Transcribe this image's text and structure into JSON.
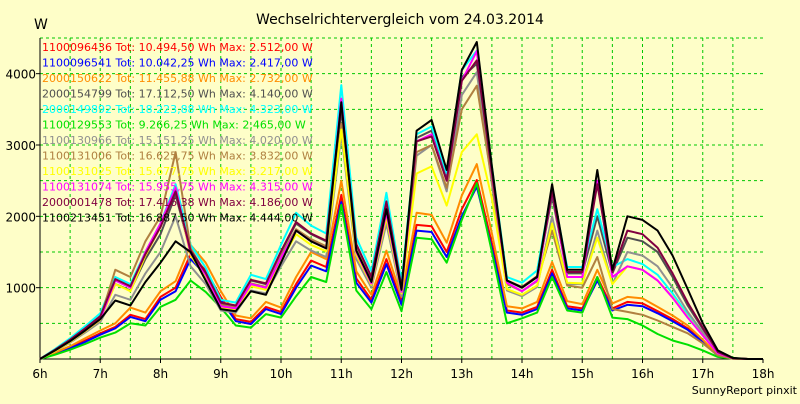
{
  "footer": {
    "credit": "SunnyReport pinxit"
  },
  "chart_data": {
    "type": "line",
    "title": "Wechselrichtervergleich vom 24.03.2014",
    "ylabel": "W",
    "xlabel": "",
    "ylim": [
      0,
      4500
    ],
    "xlim": [
      6,
      18
    ],
    "yticks": [
      1000,
      2000,
      3000,
      4000
    ],
    "xticks": [
      6,
      7,
      8,
      9,
      10,
      11,
      12,
      13,
      14,
      15,
      16,
      17,
      18
    ],
    "xtick_labels": [
      "6h",
      "7h",
      "8h",
      "9h",
      "10h",
      "11h",
      "12h",
      "13h",
      "14h",
      "15h",
      "16h",
      "17h",
      "18h"
    ],
    "grid": true,
    "legend_position": "top-left",
    "x": [
      6,
      6.25,
      6.5,
      6.75,
      7,
      7.25,
      7.5,
      7.75,
      8,
      8.25,
      8.5,
      8.75,
      9,
      9.25,
      9.5,
      9.75,
      10,
      10.25,
      10.5,
      10.75,
      11,
      11.25,
      11.5,
      11.75,
      12,
      12.25,
      12.5,
      12.75,
      13,
      13.25,
      13.5,
      13.75,
      14,
      14.25,
      14.5,
      14.75,
      15,
      15.25,
      15.5,
      15.75,
      16,
      16.25,
      16.5,
      16.75,
      17,
      17.25,
      17.5,
      17.75,
      18
    ],
    "series": [
      {
        "name": "1100096436 Tot: 10.494,50 Wh Max: 2.512,00 W",
        "color": "#ff0000",
        "values": [
          0,
          80,
          160,
          260,
          360,
          450,
          620,
          560,
          870,
          1000,
          1470,
          1240,
          870,
          560,
          520,
          730,
          660,
          1050,
          1380,
          1290,
          2300,
          1130,
          830,
          1400,
          800,
          1880,
          1860,
          1500,
          2100,
          2510,
          1620,
          680,
          650,
          730,
          1250,
          740,
          710,
          1150,
          710,
          800,
          780,
          670,
          560,
          430,
          250,
          50,
          5,
          0,
          0
        ]
      },
      {
        "name": "1100096541 Tot: 10.042,25 Wh Max: 2.417,00 W",
        "color": "#0000ff",
        "values": [
          0,
          70,
          150,
          240,
          340,
          430,
          590,
          530,
          830,
          950,
          1400,
          1180,
          830,
          530,
          490,
          700,
          630,
          1000,
          1310,
          1230,
          2200,
          1070,
          790,
          1330,
          760,
          1800,
          1780,
          1430,
          2000,
          2417,
          1550,
          650,
          620,
          700,
          1200,
          710,
          680,
          1100,
          680,
          760,
          740,
          640,
          530,
          410,
          240,
          45,
          5,
          0,
          0
        ]
      },
      {
        "name": "2000150622 Tot: 11.455,88 Wh Max: 2.732,00 W",
        "color": "#ff8c00",
        "values": [
          0,
          90,
          180,
          290,
          400,
          500,
          720,
          650,
          950,
          1090,
          1600,
          1350,
          950,
          610,
          570,
          800,
          720,
          1150,
          1500,
          1400,
          2500,
          1230,
          900,
          1520,
          870,
          2050,
          2020,
          1630,
          2290,
          2732,
          1760,
          740,
          710,
          800,
          1360,
          810,
          770,
          1250,
          780,
          870,
          850,
          730,
          610,
          470,
          270,
          55,
          5,
          0,
          0
        ]
      },
      {
        "name": "2000154799 Tot: 17.112,50 Wh Max: 4.140,00 W",
        "color": "#505050",
        "values": [
          0,
          130,
          270,
          430,
          600,
          1050,
          960,
          1400,
          1750,
          2300,
          1500,
          1200,
          780,
          740,
          1100,
          1050,
          1500,
          1900,
          1750,
          1650,
          3480,
          1600,
          1150,
          2200,
          1000,
          3100,
          3200,
          2550,
          3950,
          4140,
          2600,
          1100,
          1000,
          1150,
          2280,
          1200,
          1200,
          2000,
          1200,
          1700,
          1650,
          1500,
          1150,
          750,
          420,
          100,
          10,
          0,
          0
        ]
      },
      {
        "name": "2000149892 Tot: 18.223,88 Wh Max: 4.323,00 W",
        "color": "#00ffff",
        "values": [
          0,
          140,
          290,
          460,
          640,
          1150,
          1050,
          1500,
          1900,
          2450,
          1600,
          1280,
          830,
          790,
          1180,
          1120,
          1600,
          2050,
          1870,
          1760,
          3840,
          1700,
          1230,
          2330,
          1070,
          3150,
          3260,
          2600,
          4050,
          4323,
          2700,
          1150,
          1070,
          1240,
          2400,
          1290,
          1290,
          2100,
          1290,
          1400,
          1330,
          1180,
          920,
          620,
          350,
          80,
          10,
          0,
          0
        ]
      },
      {
        "name": "1100129553 Tot: 9.266,25 Wh Max: 2.465,00 W",
        "color": "#00e000",
        "values": [
          0,
          60,
          130,
          210,
          300,
          370,
          500,
          470,
          730,
          830,
          1100,
          940,
          720,
          470,
          440,
          630,
          580,
          880,
          1150,
          1080,
          2160,
          960,
          700,
          1220,
          670,
          1700,
          1680,
          1350,
          1950,
          2465,
          1500,
          500,
          570,
          650,
          1150,
          680,
          650,
          1150,
          580,
          560,
          470,
          350,
          260,
          200,
          120,
          30,
          5,
          0,
          0
        ]
      },
      {
        "name": "1100130966 Tot: 15.151,25 Wh Max: 4.020,00 W",
        "color": "#909090",
        "values": [
          0,
          110,
          230,
          370,
          520,
          900,
          830,
          1200,
          1500,
          2000,
          1300,
          1050,
          680,
          650,
          960,
          920,
          1300,
          1650,
          1520,
          1430,
          3150,
          1400,
          1000,
          1900,
          880,
          2850,
          3000,
          2350,
          3700,
          4020,
          2450,
          960,
          880,
          1010,
          2000,
          1050,
          1050,
          1800,
          1050,
          1500,
          1450,
          1300,
          1000,
          660,
          370,
          90,
          10,
          0,
          0
        ]
      },
      {
        "name": "1100131006 Tot: 16.625,75 Wh Max: 3.832,00 W",
        "color": "#b08040",
        "values": [
          0,
          120,
          250,
          410,
          570,
          1250,
          1150,
          1650,
          2000,
          2900,
          1550,
          1200,
          760,
          720,
          1060,
          1010,
          1450,
          1820,
          1680,
          1580,
          3300,
          1530,
          1090,
          2080,
          960,
          2900,
          3000,
          2400,
          3500,
          3832,
          2500,
          1050,
          950,
          1090,
          1800,
          1030,
          1000,
          1430,
          700,
          660,
          620,
          540,
          450,
          360,
          220,
          50,
          5,
          0,
          0
        ]
      },
      {
        "name": "1100131025 Tot: 15.677,75 Wh Max: 3.217,00 W",
        "color": "#ffff00",
        "values": [
          0,
          110,
          240,
          390,
          550,
          1050,
          950,
          1450,
          1850,
          2400,
          1450,
          1150,
          720,
          690,
          1020,
          970,
          1380,
          1750,
          1600,
          1510,
          3217,
          1460,
          1040,
          1980,
          920,
          2600,
          2700,
          2150,
          2900,
          3150,
          2250,
          980,
          900,
          1030,
          1900,
          1070,
          1060,
          1700,
          1050,
          1300,
          1250,
          1100,
          870,
          590,
          330,
          80,
          10,
          0,
          0
        ]
      },
      {
        "name": "1100131074 Tot: 15.955,75 Wh Max: 4.315,00 W",
        "color": "#ff00ff",
        "values": [
          0,
          120,
          250,
          400,
          560,
          1100,
          1000,
          1500,
          1900,
          2400,
          1480,
          1180,
          740,
          710,
          1050,
          1000,
          1420,
          1800,
          1650,
          1550,
          3650,
          1500,
          1060,
          2050,
          940,
          3050,
          3150,
          2500,
          3900,
          4315,
          2600,
          1070,
          950,
          1100,
          2350,
          1150,
          1150,
          2500,
          1150,
          1300,
          1250,
          1100,
          860,
          580,
          330,
          80,
          10,
          0,
          0
        ]
      },
      {
        "name": "2000001478 Tot: 17.416,38 Wh Max: 4.186,00 W",
        "color": "#800040",
        "values": [
          0,
          130,
          270,
          430,
          600,
          1120,
          1020,
          1470,
          1850,
          2350,
          1520,
          1210,
          790,
          750,
          1110,
          1060,
          1510,
          1920,
          1760,
          1660,
          3560,
          1610,
          1150,
          2210,
          1010,
          3050,
          3120,
          2500,
          3900,
          4186,
          2620,
          1100,
          1010,
          1160,
          2350,
          1220,
          1220,
          2450,
          1220,
          1800,
          1750,
          1560,
          1200,
          790,
          440,
          100,
          10,
          0,
          0
        ]
      },
      {
        "name": "1100213451 Tot: 16.887,50 Wh Max: 4.444,00 W",
        "color": "#000000",
        "values": [
          0,
          120,
          250,
          400,
          560,
          820,
          750,
          1080,
          1350,
          1650,
          1500,
          1100,
          700,
          670,
          950,
          900,
          1350,
          1800,
          1650,
          1550,
          3600,
          1520,
          1080,
          2100,
          970,
          3200,
          3350,
          2650,
          4050,
          4444,
          2700,
          1100,
          1000,
          1150,
          2450,
          1250,
          1250,
          2650,
          1250,
          2000,
          1950,
          1800,
          1450,
          980,
          500,
          120,
          15,
          0,
          0
        ]
      }
    ]
  }
}
